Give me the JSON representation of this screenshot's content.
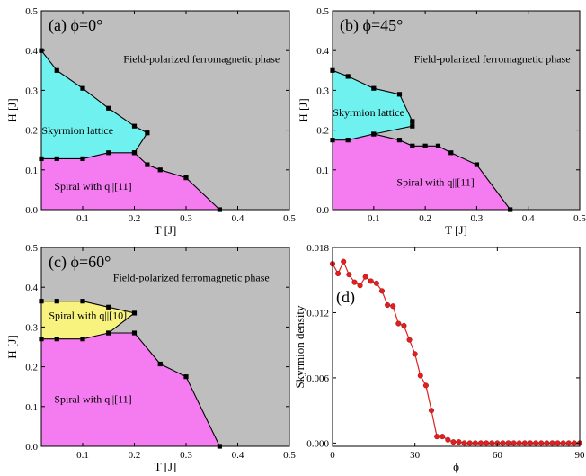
{
  "colors": {
    "background": "#c0c0c0",
    "fp": "#bebebe",
    "skyrmion": "#6ff2ef",
    "spiral11": "#f47cf0",
    "spiral10": "#f7f37e",
    "line": "#000000",
    "density": "#e02020"
  },
  "chart_data": [
    {
      "type": "area",
      "panel_label": "(a) ϕ=0°",
      "xlabel": "T [J]",
      "ylabel": "H [J]",
      "xlim": [
        0.02,
        0.5
      ],
      "ylim": [
        0,
        0.5
      ],
      "xticks": [
        0.1,
        0.2,
        0.3,
        0.4,
        0.5
      ],
      "xtick_labels": [
        "0.1",
        "0.2",
        "0.3",
        "0.4",
        "0.5"
      ],
      "yticks": [
        0,
        0.1,
        0.2,
        0.3,
        0.4,
        0.5
      ],
      "ytick_labels": [
        "0.0",
        "0.1",
        "0.2",
        "0.3",
        "0.4",
        "0.5"
      ],
      "regions": [
        {
          "label": "Field-polarized ferromagnetic phase",
          "label_at": [
            0.33,
            0.37
          ]
        },
        {
          "label": "Skyrmion lattice",
          "label_at": [
            0.09,
            0.19
          ],
          "polygon": [
            [
              0.02,
              0.4
            ],
            [
              0.05,
              0.35
            ],
            [
              0.1,
              0.305
            ],
            [
              0.15,
              0.255
            ],
            [
              0.2,
              0.21
            ],
            [
              0.225,
              0.193
            ],
            [
              0.2,
              0.143
            ],
            [
              0.15,
              0.143
            ],
            [
              0.1,
              0.128
            ],
            [
              0.05,
              0.128
            ],
            [
              0.02,
              0.128
            ]
          ]
        },
        {
          "label": "Spiral with q||[11]",
          "label_at": [
            0.12,
            0.05
          ],
          "polygon": [
            [
              0.02,
              0.128
            ],
            [
              0.05,
              0.128
            ],
            [
              0.1,
              0.128
            ],
            [
              0.15,
              0.143
            ],
            [
              0.2,
              0.143
            ],
            [
              0.225,
              0.113
            ],
            [
              0.25,
              0.1
            ],
            [
              0.3,
              0.08
            ],
            [
              0.365,
              0.0
            ],
            [
              0.02,
              0.0
            ]
          ]
        }
      ],
      "boundaries": [
        [
          [
            0.02,
            0.4
          ],
          [
            0.05,
            0.35
          ],
          [
            0.1,
            0.305
          ],
          [
            0.15,
            0.255
          ],
          [
            0.2,
            0.21
          ],
          [
            0.225,
            0.193
          ],
          [
            0.2,
            0.143
          ],
          [
            0.225,
            0.113
          ],
          [
            0.25,
            0.1
          ],
          [
            0.3,
            0.08
          ],
          [
            0.365,
            0.0
          ]
        ],
        [
          [
            0.02,
            0.128
          ],
          [
            0.05,
            0.128
          ],
          [
            0.1,
            0.128
          ],
          [
            0.15,
            0.143
          ],
          [
            0.2,
            0.143
          ]
        ]
      ]
    },
    {
      "type": "area",
      "panel_label": "(b) ϕ=45°",
      "xlabel": "T [J]",
      "ylabel": "H [J]",
      "xlim": [
        0.02,
        0.5
      ],
      "ylim": [
        0,
        0.5
      ],
      "xticks": [
        0.1,
        0.2,
        0.3,
        0.4,
        0.5
      ],
      "xtick_labels": [
        "0.1",
        "0.2",
        "0.3",
        "0.4",
        "0.5"
      ],
      "yticks": [
        0,
        0.1,
        0.2,
        0.3,
        0.4,
        0.5
      ],
      "ytick_labels": [
        "0.0",
        "0.1",
        "0.2",
        "0.3",
        "0.4",
        "0.5"
      ],
      "regions": [
        {
          "label": "Field-polarized ferromagnetic phase",
          "label_at": [
            0.33,
            0.37
          ]
        },
        {
          "label": "Skyrmion lattice",
          "label_at": [
            0.09,
            0.235
          ],
          "polygon": [
            [
              0.02,
              0.35
            ],
            [
              0.05,
              0.335
            ],
            [
              0.1,
              0.305
            ],
            [
              0.15,
              0.29
            ],
            [
              0.175,
              0.222
            ],
            [
              0.175,
              0.21
            ],
            [
              0.15,
              0.2
            ],
            [
              0.1,
              0.19
            ],
            [
              0.05,
              0.175
            ],
            [
              0.02,
              0.175
            ]
          ]
        },
        {
          "label": "Spiral with q||[11]",
          "label_at": [
            0.22,
            0.06
          ],
          "polygon": [
            [
              0.02,
              0.175
            ],
            [
              0.05,
              0.175
            ],
            [
              0.1,
              0.19
            ],
            [
              0.15,
              0.175
            ],
            [
              0.175,
              0.16
            ],
            [
              0.2,
              0.16
            ],
            [
              0.225,
              0.16
            ],
            [
              0.25,
              0.143
            ],
            [
              0.3,
              0.113
            ],
            [
              0.365,
              0.0
            ],
            [
              0.02,
              0.0
            ]
          ]
        }
      ],
      "boundaries": [
        [
          [
            0.02,
            0.35
          ],
          [
            0.05,
            0.335
          ],
          [
            0.1,
            0.305
          ],
          [
            0.15,
            0.29
          ],
          [
            0.175,
            0.222
          ],
          [
            0.175,
            0.21
          ],
          [
            0.1,
            0.19
          ]
        ],
        [
          [
            0.02,
            0.175
          ],
          [
            0.05,
            0.175
          ],
          [
            0.1,
            0.19
          ],
          [
            0.15,
            0.175
          ],
          [
            0.175,
            0.16
          ],
          [
            0.2,
            0.16
          ],
          [
            0.225,
            0.16
          ],
          [
            0.25,
            0.143
          ],
          [
            0.3,
            0.113
          ],
          [
            0.365,
            0.0
          ]
        ]
      ]
    },
    {
      "type": "area",
      "panel_label": "(c) ϕ=60°",
      "xlabel": "T [J]",
      "ylabel": "H [J]",
      "xlim": [
        0.02,
        0.5
      ],
      "ylim": [
        0,
        0.5
      ],
      "xticks": [
        0.1,
        0.2,
        0.3,
        0.4,
        0.5
      ],
      "xtick_labels": [
        "0.1",
        "0.2",
        "0.3",
        "0.4",
        "0.5"
      ],
      "yticks": [
        0,
        0.1,
        0.2,
        0.3,
        0.4,
        0.5
      ],
      "ytick_labels": [
        "0.0",
        "0.1",
        "0.2",
        "0.3",
        "0.4",
        "0.5"
      ],
      "regions": [
        {
          "label": "Field-polarized ferromagnetic phase",
          "label_at": [
            0.31,
            0.415
          ]
        },
        {
          "label": "Spiral with q||[10]",
          "label_at": [
            0.11,
            0.32
          ],
          "polygon": [
            [
              0.02,
              0.365
            ],
            [
              0.05,
              0.365
            ],
            [
              0.1,
              0.365
            ],
            [
              0.15,
              0.35
            ],
            [
              0.2,
              0.335
            ],
            [
              0.15,
              0.285
            ],
            [
              0.1,
              0.27
            ],
            [
              0.05,
              0.27
            ],
            [
              0.02,
              0.27
            ]
          ]
        },
        {
          "label": "Spiral with q||[11]",
          "label_at": [
            0.12,
            0.11
          ],
          "polygon": [
            [
              0.02,
              0.27
            ],
            [
              0.05,
              0.27
            ],
            [
              0.1,
              0.27
            ],
            [
              0.15,
              0.285
            ],
            [
              0.2,
              0.285
            ],
            [
              0.25,
              0.207
            ],
            [
              0.3,
              0.175
            ],
            [
              0.365,
              0.0
            ],
            [
              0.02,
              0.0
            ]
          ]
        }
      ],
      "boundaries": [
        [
          [
            0.02,
            0.365
          ],
          [
            0.05,
            0.365
          ],
          [
            0.1,
            0.365
          ],
          [
            0.15,
            0.35
          ],
          [
            0.2,
            0.335
          ],
          [
            0.15,
            0.285
          ]
        ],
        [
          [
            0.02,
            0.27
          ],
          [
            0.05,
            0.27
          ],
          [
            0.1,
            0.27
          ],
          [
            0.15,
            0.285
          ],
          [
            0.2,
            0.285
          ],
          [
            0.25,
            0.207
          ],
          [
            0.3,
            0.175
          ],
          [
            0.365,
            0.0
          ]
        ]
      ]
    },
    {
      "type": "line",
      "panel_label": "(d)",
      "xlabel": "ϕ",
      "ylabel": "Skyrmion density",
      "xlim": [
        0,
        90
      ],
      "ylim": [
        -0.0003,
        0.018
      ],
      "xticks": [
        0,
        30,
        60,
        90
      ],
      "xtick_labels": [
        "0",
        "30",
        "60",
        "90"
      ],
      "yticks": [
        0,
        0.006,
        0.012,
        0.018
      ],
      "ytick_labels": [
        "0.000",
        "0.006",
        "0.012",
        "0.018"
      ],
      "series": [
        {
          "x": [
            0,
            2,
            4,
            6,
            8,
            10,
            12,
            14,
            16,
            18,
            20,
            22,
            24,
            26,
            28,
            30,
            32,
            34,
            36,
            38,
            40,
            42,
            44,
            46,
            48,
            50,
            52,
            54,
            56,
            58,
            60,
            62,
            64,
            66,
            68,
            70,
            72,
            74,
            76,
            78,
            80,
            82,
            84,
            86,
            88,
            90
          ],
          "y": [
            0.0165,
            0.0156,
            0.0167,
            0.0155,
            0.0148,
            0.0145,
            0.0153,
            0.0149,
            0.0147,
            0.014,
            0.0127,
            0.0126,
            0.011,
            0.0108,
            0.0095,
            0.0082,
            0.0062,
            0.0053,
            0.003,
            0.0006,
            0.0006,
            0.0003,
            0.0001,
            0.0001,
            0.0,
            0.0,
            0.0,
            0.0,
            0.0,
            0.0,
            0.0,
            0.0,
            0.0,
            0.0,
            0.0,
            0.0,
            0.0,
            0.0,
            0.0,
            0.0,
            0.0,
            0.0,
            0.0,
            0.0,
            0.0,
            0.0
          ]
        }
      ]
    }
  ]
}
